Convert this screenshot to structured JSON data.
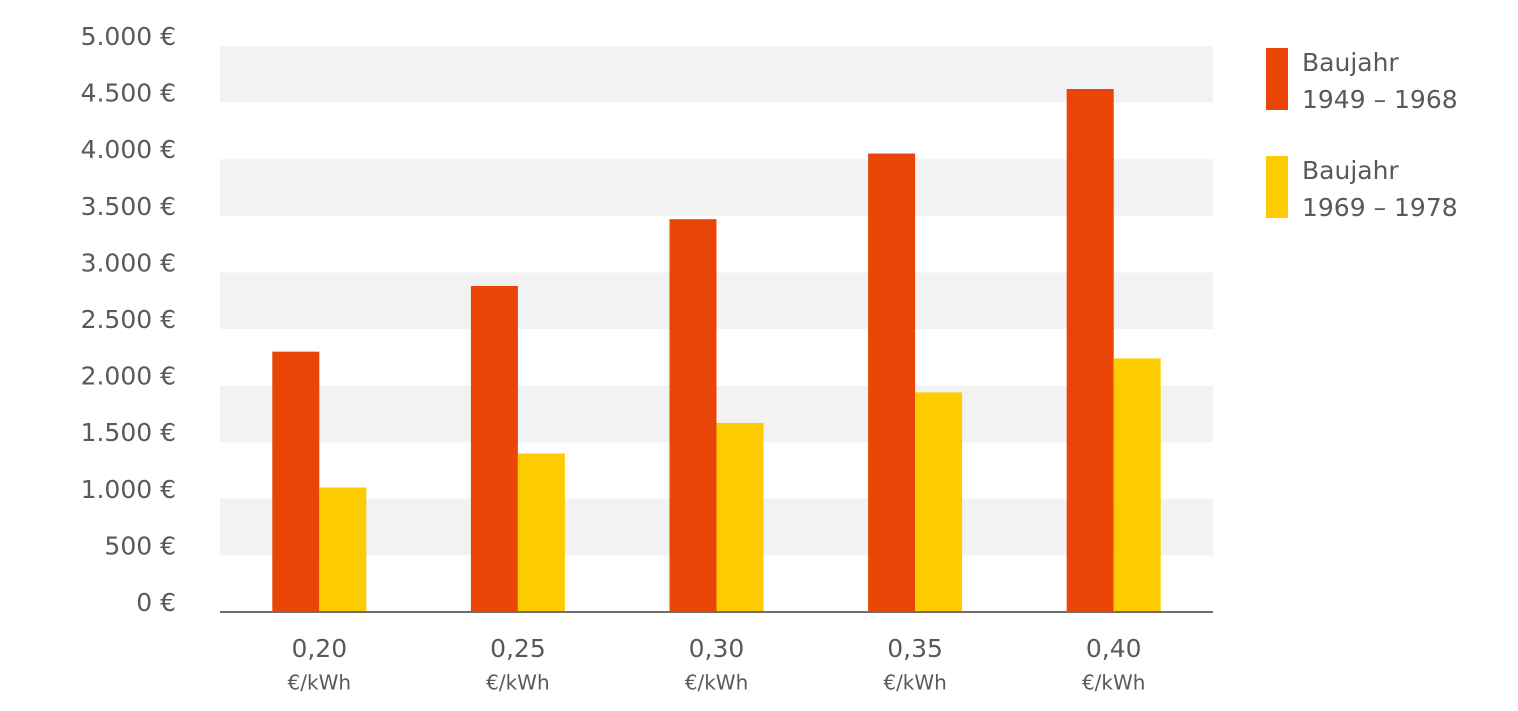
{
  "chart_data": {
    "type": "bar",
    "categories": [
      "0,20",
      "0,25",
      "0,30",
      "0,35",
      "0,40"
    ],
    "category_unit": "€/kWh",
    "series": [
      {
        "name": "Baujahr\n1949 – 1968",
        "color": "#e94506",
        "values": [
          2300,
          2880,
          3470,
          4050,
          4620
        ]
      },
      {
        "name": "Baujahr\n1969 – 1978",
        "color": "#fccc00",
        "values": [
          1100,
          1400,
          1670,
          1940,
          2240
        ]
      }
    ],
    "ylim": [
      0,
      5000
    ],
    "yticks": [
      {
        "value": 0,
        "label": "0 €"
      },
      {
        "value": 500,
        "label": "500 €"
      },
      {
        "value": 1000,
        "label": "1.000 €"
      },
      {
        "value": 1500,
        "label": "1.500 €"
      },
      {
        "value": 2000,
        "label": "2.000 €"
      },
      {
        "value": 2500,
        "label": "2.500 €"
      },
      {
        "value": 3000,
        "label": "3.000 €"
      },
      {
        "value": 3500,
        "label": "3.500 €"
      },
      {
        "value": 4000,
        "label": "4.000 €"
      },
      {
        "value": 4500,
        "label": "4.500 €"
      },
      {
        "value": 5000,
        "label": "5.000 €"
      }
    ],
    "grid_bands": true,
    "legend": "right"
  }
}
